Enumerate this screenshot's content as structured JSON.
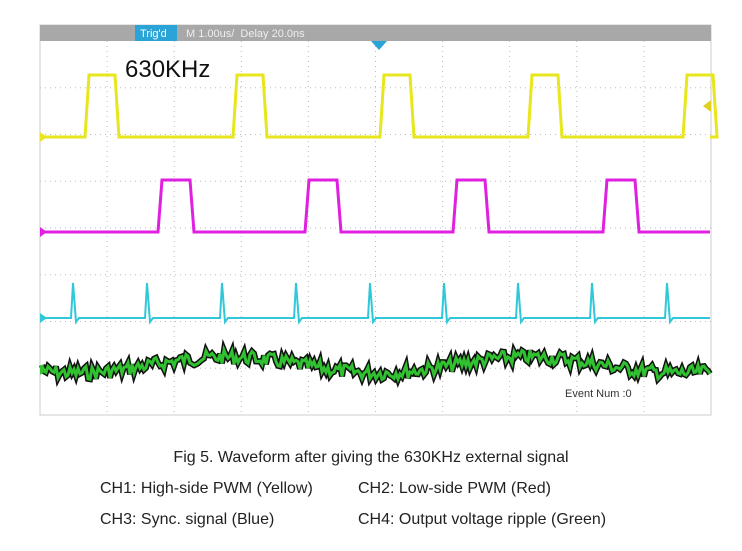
{
  "screen": {
    "status": {
      "trigger": "Trig'd",
      "timebase": "M 1.00us/  Delay 20.0ns"
    },
    "frequency_label": "630KHz",
    "event_counter": "Event Num :0"
  },
  "caption": {
    "title": "Fig 5. Waveform after giving the 630KHz external signal",
    "channels": [
      "CH1: High-side PWM (Yellow)",
      "CH2: Low-side PWM (Red)",
      "CH3: Sync. signal (Blue)",
      "CH4: Output voltage ripple (Green)"
    ]
  }
}
